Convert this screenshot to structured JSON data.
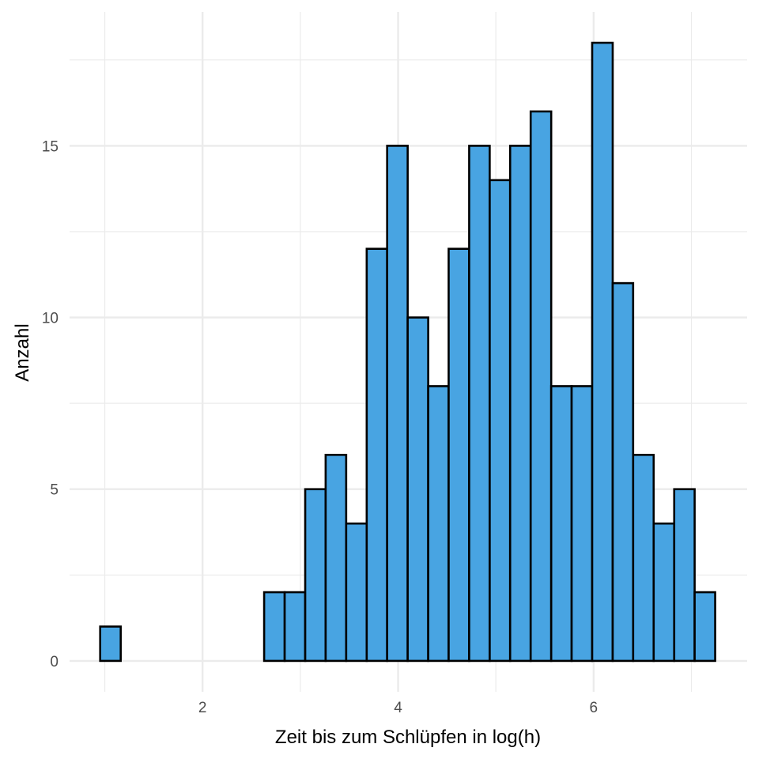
{
  "chart_data": {
    "type": "bar",
    "subtype": "histogram",
    "title": "",
    "xlabel": "Zeit bis zum Schlüpfen in log(h)",
    "ylabel": "Anzahl",
    "bin_width": 0.2096,
    "bins": [
      {
        "x_start": 0.953,
        "x_end": 1.163,
        "count": 1
      },
      {
        "x_start": 1.163,
        "x_end": 1.372,
        "count": 0
      },
      {
        "x_start": 1.372,
        "x_end": 1.582,
        "count": 0
      },
      {
        "x_start": 1.582,
        "x_end": 1.792,
        "count": 0
      },
      {
        "x_start": 1.792,
        "x_end": 2.001,
        "count": 0
      },
      {
        "x_start": 2.001,
        "x_end": 2.211,
        "count": 0
      },
      {
        "x_start": 2.211,
        "x_end": 2.421,
        "count": 0
      },
      {
        "x_start": 2.421,
        "x_end": 2.63,
        "count": 0
      },
      {
        "x_start": 2.63,
        "x_end": 2.84,
        "count": 2
      },
      {
        "x_start": 2.84,
        "x_end": 3.05,
        "count": 2
      },
      {
        "x_start": 3.05,
        "x_end": 3.259,
        "count": 5
      },
      {
        "x_start": 3.259,
        "x_end": 3.469,
        "count": 6
      },
      {
        "x_start": 3.469,
        "x_end": 3.679,
        "count": 4
      },
      {
        "x_start": 3.679,
        "x_end": 3.888,
        "count": 12
      },
      {
        "x_start": 3.888,
        "x_end": 4.098,
        "count": 15
      },
      {
        "x_start": 4.098,
        "x_end": 4.308,
        "count": 10
      },
      {
        "x_start": 4.308,
        "x_end": 4.517,
        "count": 8
      },
      {
        "x_start": 4.517,
        "x_end": 4.727,
        "count": 12
      },
      {
        "x_start": 4.727,
        "x_end": 4.937,
        "count": 15
      },
      {
        "x_start": 4.937,
        "x_end": 5.146,
        "count": 14
      },
      {
        "x_start": 5.146,
        "x_end": 5.356,
        "count": 15
      },
      {
        "x_start": 5.356,
        "x_end": 5.566,
        "count": 16
      },
      {
        "x_start": 5.566,
        "x_end": 5.775,
        "count": 8
      },
      {
        "x_start": 5.775,
        "x_end": 5.985,
        "count": 8
      },
      {
        "x_start": 5.985,
        "x_end": 6.195,
        "count": 18
      },
      {
        "x_start": 6.195,
        "x_end": 6.404,
        "count": 11
      },
      {
        "x_start": 6.404,
        "x_end": 6.614,
        "count": 6
      },
      {
        "x_start": 6.614,
        "x_end": 6.824,
        "count": 4
      },
      {
        "x_start": 6.824,
        "x_end": 7.033,
        "count": 5
      },
      {
        "x_start": 7.033,
        "x_end": 7.243,
        "count": 2
      }
    ],
    "xlim": [
      0.64,
      7.57
    ],
    "ylim": [
      -0.9,
      18.9
    ],
    "x_ticks": [
      2,
      4,
      6
    ],
    "x_tick_labels": [
      "2",
      "4",
      "6"
    ],
    "y_ticks": [
      0,
      5,
      10,
      15
    ],
    "y_tick_labels": [
      "0",
      "5",
      "10",
      "15"
    ],
    "grid": true,
    "legend": "none",
    "colors": {
      "bar_fill": "#48a4e2",
      "bar_stroke": "#000000",
      "grid": "#ebebeb",
      "tick_text": "#4d4d4d"
    }
  }
}
